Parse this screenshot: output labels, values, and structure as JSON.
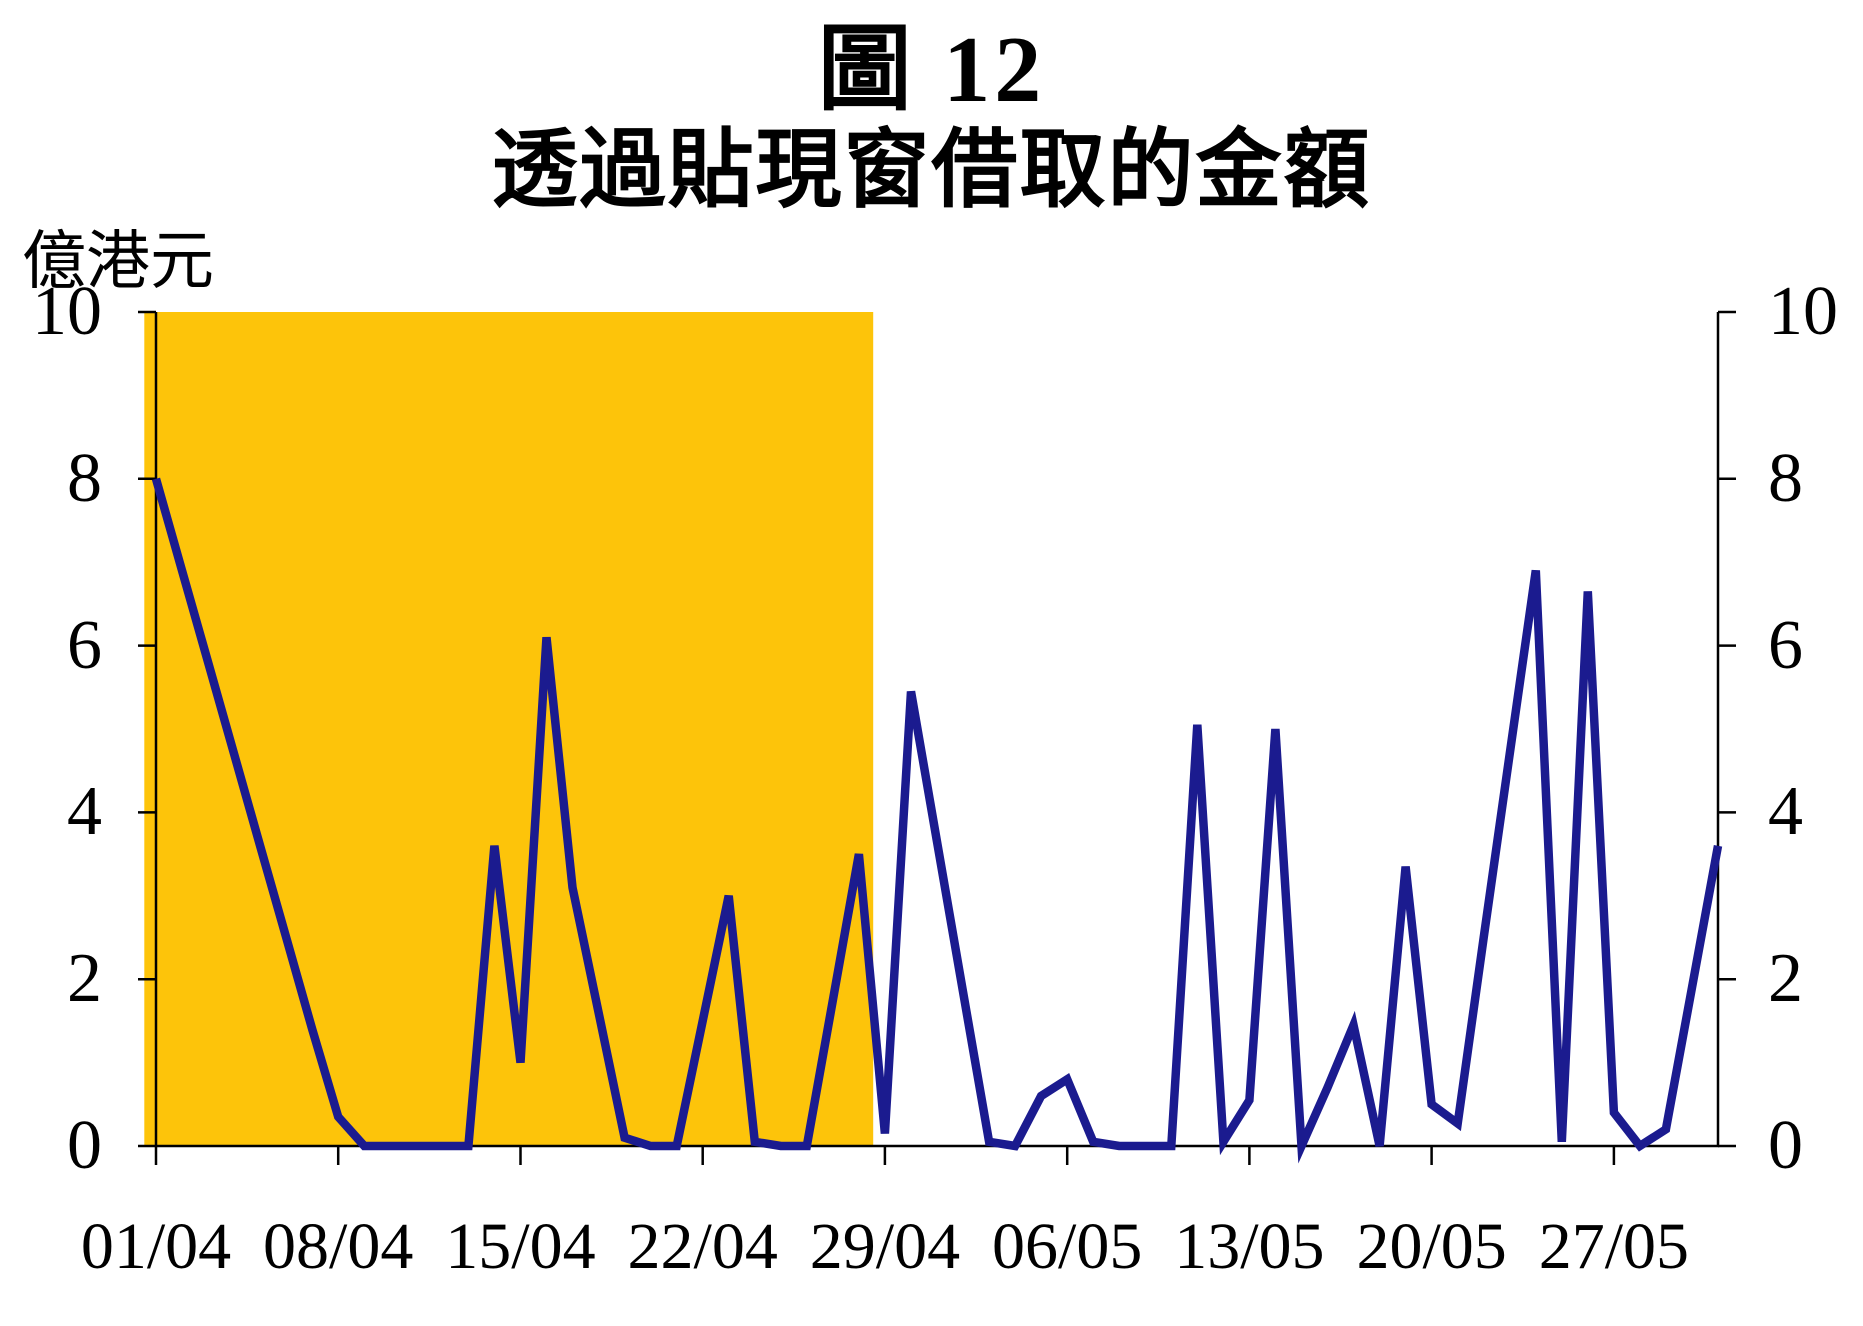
{
  "page": {
    "background": "#ffffff"
  },
  "header": {
    "title": "圖 12",
    "subtitle": "透過貼現窗借取的金額",
    "unit_label": "億港元"
  },
  "chart_data": {
    "type": "line",
    "title": "圖 12",
    "subtitle": "透過貼現窗借取的金額",
    "xlabel": "",
    "ylabel": "億港元",
    "ylim": [
      0,
      10
    ],
    "y_ticks": [
      0,
      2,
      4,
      6,
      8,
      10
    ],
    "x_tick_labels": [
      "01/04",
      "08/04",
      "15/04",
      "22/04",
      "29/04",
      "06/05",
      "13/05",
      "20/05",
      "27/05"
    ],
    "x_tick_days": [
      0,
      7,
      14,
      21,
      28,
      35,
      42,
      49,
      56
    ],
    "x_total_days": 60,
    "grid": false,
    "legend_position": "none",
    "line_color": "#1B1B8F",
    "axis_color": "#000000",
    "highlight_band": {
      "start_day": -0.45,
      "end_day": 27.55,
      "color": "#FDC40A"
    },
    "series": [
      {
        "name": "透過貼現窗借取的金額",
        "dates": [
          "01/04",
          "02/04",
          "03/04",
          "04/04",
          "05/04",
          "06/04",
          "07/04",
          "08/04",
          "09/04",
          "10/04",
          "11/04",
          "12/04",
          "13/04",
          "14/04",
          "15/04",
          "16/04",
          "17/04",
          "18/04",
          "19/04",
          "20/04",
          "21/04",
          "22/04",
          "23/04",
          "24/04",
          "25/04",
          "26/04",
          "27/04",
          "28/04",
          "29/04",
          "30/04",
          "01/05",
          "02/05",
          "03/05",
          "04/05",
          "05/05",
          "06/05",
          "07/05",
          "08/05",
          "09/05",
          "10/05",
          "11/05",
          "12/05",
          "13/05",
          "14/05",
          "15/05",
          "16/05",
          "17/05",
          "18/05",
          "19/05",
          "20/05",
          "21/05",
          "22/05",
          "23/05",
          "24/05",
          "25/05",
          "26/05",
          "27/05",
          "28/05",
          "29/05",
          "30/05",
          "31/05"
        ],
        "values": [
          8.0,
          6.9,
          5.8,
          4.7,
          3.6,
          2.5,
          1.4,
          0.35,
          0,
          0,
          0,
          0,
          0,
          3.6,
          1.0,
          6.1,
          3.1,
          1.6,
          0.1,
          0,
          0,
          1.5,
          3.0,
          0.05,
          0,
          0,
          1.75,
          3.5,
          0.15,
          5.45,
          3.65,
          1.85,
          0.05,
          0,
          0.6,
          0.8,
          0.05,
          0,
          0,
          0,
          5.05,
          0.05,
          0.55,
          5.0,
          0,
          0.7,
          1.45,
          0,
          3.35,
          0.5,
          0.27,
          2.5,
          4.7,
          6.9,
          0.05,
          6.65,
          0.4,
          0,
          0.2,
          1.9,
          3.6
        ]
      }
    ]
  }
}
